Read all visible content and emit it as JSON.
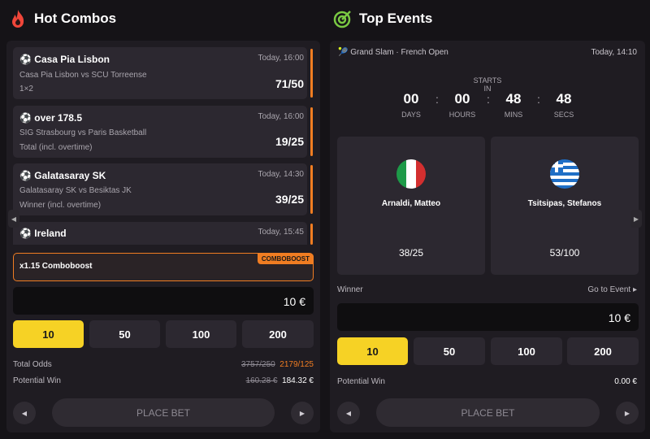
{
  "hot_combos": {
    "title": "Hot Combos",
    "bets": [
      {
        "team": "Casa Pia Lisbon",
        "time": "Today, 16:00",
        "match": "Casa Pia Lisbon vs SCU Torreense",
        "market": "1×2",
        "odds": "71/50"
      },
      {
        "team": "over 178.5",
        "time": "Today, 16:00",
        "match": "SIG Strasbourg vs Paris Basketball",
        "market": "Total (incl. overtime)",
        "odds": "19/25"
      },
      {
        "team": "Galatasaray SK",
        "time": "Today, 14:30",
        "match": "Galatasaray SK vs Besiktas JK",
        "market": "Winner (incl. overtime)",
        "odds": "39/25"
      },
      {
        "team": "Ireland",
        "time": "Today, 15:45"
      }
    ],
    "boost": {
      "label": "x1.15 Comboboost",
      "badge": "COMBOBOOST"
    },
    "stake": "10 €",
    "amounts": [
      10,
      50,
      100,
      200
    ],
    "total_odds": {
      "label": "Total Odds",
      "old": "3757/250",
      "new": "2179/125"
    },
    "potential_win": {
      "label": "Potential Win",
      "old": "160.28 €",
      "new": "184.32 €"
    },
    "button": "PLACE BET"
  },
  "top_events": {
    "title": "Top Events",
    "event": "Grand Slam · French Open",
    "time": "Today, 14:10",
    "countdown": {
      "label": "STARTS IN",
      "units": [
        {
          "value": "00",
          "label": "DAYS"
        },
        {
          "value": "00",
          "label": "HOURS"
        },
        {
          "value": "48",
          "label": "MINS"
        },
        {
          "value": "48",
          "label": "SECS"
        }
      ]
    },
    "players": [
      {
        "name": "Arnaldi, Matteo",
        "odds": "38/25"
      },
      {
        "name": "Tsitsipas, Stefanos",
        "odds": "53/100"
      }
    ],
    "market": "Winner",
    "link": "Go to Event ▸",
    "stake": "10 €",
    "amounts": [
      10,
      50,
      100,
      200
    ],
    "potential_win": {
      "label": "Potential Win",
      "value": "0.00 €"
    },
    "button": "PLACE BET"
  }
}
